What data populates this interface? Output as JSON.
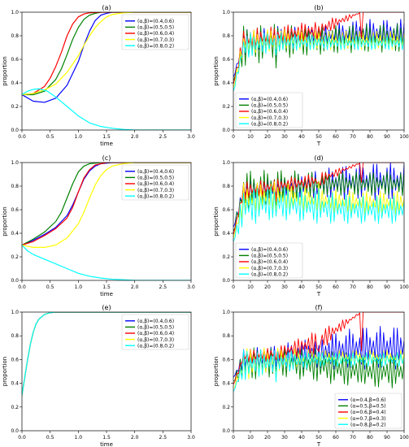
{
  "chart_data": [
    {
      "type": "line",
      "title": "(a)",
      "xlabel": "time",
      "ylabel": "proportion",
      "xlim": [
        0,
        3
      ],
      "ylim": [
        0,
        1
      ],
      "xticks": [
        "0.0",
        "0.5",
        "1.0",
        "1.5",
        "2.0",
        "2.5",
        "3.0"
      ],
      "yticks": [
        "0.0",
        "0.2",
        "0.4",
        "0.6",
        "0.8",
        "1.0"
      ],
      "legend": "top-right",
      "series": [
        {
          "name": "(α,β)=(0.4,0.6)",
          "color": "#0000ff",
          "x": [
            0,
            0.2,
            0.4,
            0.6,
            0.8,
            1.0,
            1.1,
            1.2,
            1.3,
            1.4,
            1.5,
            1.6,
            1.8,
            2.0,
            3.0
          ],
          "y": [
            0.3,
            0.245,
            0.235,
            0.27,
            0.38,
            0.58,
            0.72,
            0.84,
            0.93,
            0.975,
            0.99,
            1.0,
            1.0,
            1.0,
            1.0
          ]
        },
        {
          "name": "(α,β)=(0.5,0.5)",
          "color": "#008000",
          "x": [
            0,
            0.2,
            0.4,
            0.6,
            0.7,
            0.8,
            0.9,
            1.0,
            1.1,
            1.2,
            1.3,
            1.4,
            1.6,
            3.0
          ],
          "y": [
            0.3,
            0.3,
            0.33,
            0.43,
            0.52,
            0.64,
            0.77,
            0.87,
            0.94,
            0.975,
            0.99,
            1.0,
            1.0,
            1.0
          ]
        },
        {
          "name": "(α,β)=(0.6,0.4)",
          "color": "#ff0000",
          "x": [
            0,
            0.2,
            0.4,
            0.5,
            0.6,
            0.7,
            0.8,
            0.9,
            1.0,
            1.1,
            1.2,
            1.4,
            3.0
          ],
          "y": [
            0.3,
            0.31,
            0.37,
            0.44,
            0.54,
            0.66,
            0.8,
            0.9,
            0.96,
            0.985,
            0.995,
            1.0,
            1.0
          ]
        },
        {
          "name": "(α,β)=(0.7,0.3)",
          "color": "#ffff00",
          "x": [
            0,
            0.2,
            0.4,
            0.6,
            0.8,
            1.0,
            1.1,
            1.2,
            1.3,
            1.4,
            1.5,
            1.6,
            1.8,
            2.0,
            3.0
          ],
          "y": [
            0.3,
            0.31,
            0.34,
            0.39,
            0.49,
            0.63,
            0.72,
            0.8,
            0.87,
            0.92,
            0.96,
            0.98,
            0.995,
            1.0,
            1.0
          ]
        },
        {
          "name": "(α,β)=(0.8,0.2)",
          "color": "#00ffff",
          "x": [
            0,
            0.1,
            0.2,
            0.3,
            0.45,
            0.6,
            0.8,
            1.0,
            1.2,
            1.4,
            1.6,
            1.8,
            2.0,
            2.5,
            3.0
          ],
          "y": [
            0.3,
            0.33,
            0.345,
            0.35,
            0.33,
            0.28,
            0.2,
            0.12,
            0.06,
            0.03,
            0.015,
            0.005,
            0.0,
            0.0,
            0.0
          ]
        }
      ]
    },
    {
      "type": "line",
      "title": "(b)",
      "xlabel": "T",
      "ylabel": "proportion",
      "xlim": [
        0,
        100
      ],
      "ylim": [
        0,
        1
      ],
      "xticks": [
        "0",
        "10",
        "20",
        "30",
        "40",
        "50",
        "60",
        "70",
        "80",
        "90",
        "100"
      ],
      "yticks": [
        "0.0",
        "0.2",
        "0.4",
        "0.6",
        "0.8",
        "1.0"
      ],
      "legend": "lower-left",
      "series": [
        {
          "name": "(α,β)=(0.4,0.6)",
          "color": "#0000ff",
          "center": [
            0.72,
            0.78,
            0.8,
            0.82
          ],
          "amp": [
            0.12,
            0.1,
            0.08,
            0.12
          ]
        },
        {
          "name": "(α,β)=(0.5,0.5)",
          "color": "#008000",
          "center": [
            0.7,
            0.75,
            0.76,
            0.78
          ],
          "amp": [
            0.18,
            0.15,
            0.12,
            0.12
          ]
        },
        {
          "name": "(α,β)=(0.6,0.4)",
          "color": "#ff0000",
          "center": [
            0.75,
            0.8,
            0.85,
            1.0
          ],
          "amp": [
            0.1,
            0.08,
            0.08,
            0.0
          ]
        },
        {
          "name": "(α,β)=(0.7,0.3)",
          "color": "#ffff00",
          "center": [
            0.72,
            0.77,
            0.76,
            0.76
          ],
          "amp": [
            0.12,
            0.09,
            0.08,
            0.08
          ]
        },
        {
          "name": "(α,β)=(0.8,0.2)",
          "color": "#00ffff",
          "center": [
            0.7,
            0.75,
            0.74,
            0.74
          ],
          "amp": [
            0.12,
            0.08,
            0.06,
            0.06
          ]
        }
      ]
    },
    {
      "type": "line",
      "title": "(c)",
      "xlabel": "time",
      "ylabel": "proportion",
      "xlim": [
        0,
        3
      ],
      "ylim": [
        0,
        1
      ],
      "xticks": [
        "0.0",
        "0.5",
        "1.0",
        "1.5",
        "2.0",
        "2.5",
        "3.0"
      ],
      "yticks": [
        "0.0",
        "0.2",
        "0.4",
        "0.6",
        "0.8",
        "1.0"
      ],
      "legend": "top-right",
      "series": [
        {
          "name": "(α,β)=(0.4,0.6)",
          "color": "#0000ff",
          "x": [
            0,
            0.2,
            0.4,
            0.6,
            0.8,
            0.9,
            1.0,
            1.1,
            1.2,
            1.3,
            1.4,
            1.6,
            3.0
          ],
          "y": [
            0.3,
            0.34,
            0.39,
            0.45,
            0.55,
            0.64,
            0.75,
            0.86,
            0.93,
            0.97,
            0.99,
            1.0,
            1.0
          ]
        },
        {
          "name": "(α,β)=(0.5,0.5)",
          "color": "#008000",
          "x": [
            0,
            0.2,
            0.4,
            0.6,
            0.7,
            0.8,
            0.9,
            1.0,
            1.1,
            1.2,
            1.4,
            3.0
          ],
          "y": [
            0.3,
            0.35,
            0.41,
            0.5,
            0.58,
            0.7,
            0.82,
            0.92,
            0.97,
            0.99,
            1.0,
            1.0
          ]
        },
        {
          "name": "(α,β)=(0.6,0.4)",
          "color": "#ff0000",
          "x": [
            0,
            0.2,
            0.4,
            0.6,
            0.8,
            0.9,
            1.0,
            1.1,
            1.2,
            1.3,
            1.5,
            3.0
          ],
          "y": [
            0.3,
            0.33,
            0.38,
            0.44,
            0.53,
            0.62,
            0.75,
            0.87,
            0.94,
            0.98,
            1.0,
            1.0
          ]
        },
        {
          "name": "(α,β)=(0.7,0.3)",
          "color": "#ffff00",
          "x": [
            0,
            0.2,
            0.4,
            0.6,
            0.8,
            1.0,
            1.1,
            1.2,
            1.3,
            1.4,
            1.5,
            1.6,
            1.8,
            2.0,
            3.0
          ],
          "y": [
            0.3,
            0.28,
            0.28,
            0.3,
            0.36,
            0.48,
            0.58,
            0.7,
            0.81,
            0.89,
            0.94,
            0.97,
            0.99,
            1.0,
            1.0
          ]
        },
        {
          "name": "(α,β)=(0.8,0.2)",
          "color": "#00ffff",
          "x": [
            0,
            0.1,
            0.2,
            0.4,
            0.6,
            0.8,
            1.0,
            1.2,
            1.4,
            1.6,
            1.8,
            2.0,
            2.5,
            3.0
          ],
          "y": [
            0.3,
            0.25,
            0.22,
            0.18,
            0.14,
            0.1,
            0.06,
            0.035,
            0.02,
            0.01,
            0.005,
            0.0,
            0.0,
            0.0
          ]
        }
      ]
    },
    {
      "type": "line",
      "title": "(d)",
      "xlabel": "T",
      "ylabel": "proportion",
      "xlim": [
        0,
        100
      ],
      "ylim": [
        0,
        1
      ],
      "xticks": [
        "0",
        "10",
        "20",
        "30",
        "40",
        "50",
        "60",
        "70",
        "80",
        "90",
        "100"
      ],
      "yticks": [
        "0.0",
        "0.2",
        "0.4",
        "0.6",
        "0.8",
        "1.0"
      ],
      "legend": "lower-left",
      "series": [
        {
          "name": "(α,β)=(0.4,0.6)",
          "color": "#0000ff",
          "center": [
            0.75,
            0.78,
            0.82,
            0.84
          ],
          "amp": [
            0.1,
            0.08,
            0.12,
            0.16
          ]
        },
        {
          "name": "(α,β)=(0.5,0.5)",
          "color": "#008000",
          "center": [
            0.75,
            0.8,
            0.82,
            0.82
          ],
          "amp": [
            0.18,
            0.14,
            0.1,
            0.1
          ]
        },
        {
          "name": "(α,β)=(0.6,0.4)",
          "color": "#ff0000",
          "center": [
            0.75,
            0.8,
            0.85,
            1.0
          ],
          "amp": [
            0.08,
            0.06,
            0.06,
            0.0
          ]
        },
        {
          "name": "(α,β)=(0.7,0.3)",
          "color": "#ffff00",
          "center": [
            0.68,
            0.72,
            0.68,
            0.66
          ],
          "amp": [
            0.14,
            0.12,
            0.1,
            0.1
          ]
        },
        {
          "name": "(α,β)=(0.8,0.2)",
          "color": "#00ffff",
          "center": [
            0.62,
            0.66,
            0.62,
            0.6
          ],
          "amp": [
            0.18,
            0.14,
            0.14,
            0.12
          ]
        }
      ]
    },
    {
      "type": "line",
      "title": "(e)",
      "xlabel": "time",
      "ylabel": "proportion",
      "xlim": [
        0,
        3
      ],
      "ylim": [
        0,
        1
      ],
      "xticks": [
        "0.0",
        "0.5",
        "1.0",
        "1.5",
        "2.0",
        "2.5",
        "3.0"
      ],
      "yticks": [
        "0.0",
        "0.2",
        "0.4",
        "0.6",
        "0.8",
        "1.0"
      ],
      "legend": "top-right",
      "series": [
        {
          "name": "(α,β)=(0.4,0.6)",
          "color": "#0000ff",
          "x": [
            0,
            0.05,
            0.1,
            0.15,
            0.2,
            0.25,
            0.3,
            0.4,
            0.5,
            0.6,
            0.7,
            1.0,
            3.0
          ],
          "y": [
            0.3,
            0.45,
            0.6,
            0.73,
            0.83,
            0.9,
            0.94,
            0.98,
            0.995,
            1.0,
            1.0,
            1.0,
            1.0
          ]
        },
        {
          "name": "(α,β)=(0.5,0.5)",
          "color": "#008000",
          "x": [
            0,
            0.05,
            0.1,
            0.15,
            0.2,
            0.25,
            0.3,
            0.4,
            0.5,
            0.6,
            0.7,
            1.0,
            3.0
          ],
          "y": [
            0.3,
            0.45,
            0.6,
            0.73,
            0.83,
            0.9,
            0.94,
            0.98,
            0.995,
            1.0,
            1.0,
            1.0,
            1.0
          ]
        },
        {
          "name": "(α,β)=(0.6,0.4)",
          "color": "#ff0000",
          "x": [
            0,
            0.05,
            0.1,
            0.15,
            0.2,
            0.25,
            0.3,
            0.4,
            0.5,
            0.6,
            0.7,
            1.0,
            3.0
          ],
          "y": [
            0.3,
            0.45,
            0.6,
            0.73,
            0.83,
            0.9,
            0.94,
            0.98,
            0.995,
            1.0,
            1.0,
            1.0,
            1.0
          ]
        },
        {
          "name": "(α,β)=(0.7,0.3)",
          "color": "#ffff00",
          "x": [
            0,
            0.05,
            0.1,
            0.15,
            0.2,
            0.25,
            0.3,
            0.4,
            0.5,
            0.6,
            0.7,
            1.0,
            3.0
          ],
          "y": [
            0.3,
            0.45,
            0.6,
            0.73,
            0.83,
            0.9,
            0.94,
            0.98,
            0.995,
            1.0,
            1.0,
            1.0,
            1.0
          ]
        },
        {
          "name": "(α,β)=(0.8,0.2)",
          "color": "#00ffff",
          "x": [
            0,
            0.05,
            0.1,
            0.15,
            0.2,
            0.25,
            0.3,
            0.4,
            0.5,
            0.6,
            0.7,
            1.0,
            3.0
          ],
          "y": [
            0.3,
            0.45,
            0.6,
            0.73,
            0.83,
            0.9,
            0.94,
            0.98,
            0.995,
            1.0,
            1.0,
            1.0,
            1.0
          ]
        }
      ]
    },
    {
      "type": "line",
      "title": "(f)",
      "xlabel": "T",
      "ylabel": "proportion",
      "xlim": [
        0,
        100
      ],
      "ylim": [
        0,
        1
      ],
      "xticks": [
        "0",
        "10",
        "20",
        "30",
        "40",
        "50",
        "60",
        "70",
        "80",
        "90",
        "100"
      ],
      "yticks": [
        "0.0",
        "0.2",
        "0.4",
        "0.6",
        "0.8",
        "1.0"
      ],
      "legend": "lower-right",
      "series": [
        {
          "name": "(α=0.4,β=0.6)",
          "color": "#0000ff",
          "center": [
            0.6,
            0.62,
            0.66,
            0.7
          ],
          "amp": [
            0.08,
            0.1,
            0.14,
            0.18
          ]
        },
        {
          "name": "(α=0.5,β=0.5)",
          "color": "#008000",
          "center": [
            0.55,
            0.58,
            0.55,
            0.5
          ],
          "amp": [
            0.15,
            0.12,
            0.14,
            0.14
          ]
        },
        {
          "name": "(α=0.6,β=0.4)",
          "color": "#ff0000",
          "center": [
            0.62,
            0.65,
            0.75,
            1.0
          ],
          "amp": [
            0.06,
            0.05,
            0.1,
            0.0
          ]
        },
        {
          "name": "(α=0.7,β=0.3)",
          "color": "#ffff00",
          "center": [
            0.55,
            0.6,
            0.62,
            0.62
          ],
          "amp": [
            0.15,
            0.1,
            0.06,
            0.06
          ]
        },
        {
          "name": "(α=0.8,β=0.2)",
          "color": "#00ffff",
          "center": [
            0.55,
            0.58,
            0.6,
            0.6
          ],
          "amp": [
            0.14,
            0.1,
            0.06,
            0.06
          ]
        }
      ]
    }
  ]
}
